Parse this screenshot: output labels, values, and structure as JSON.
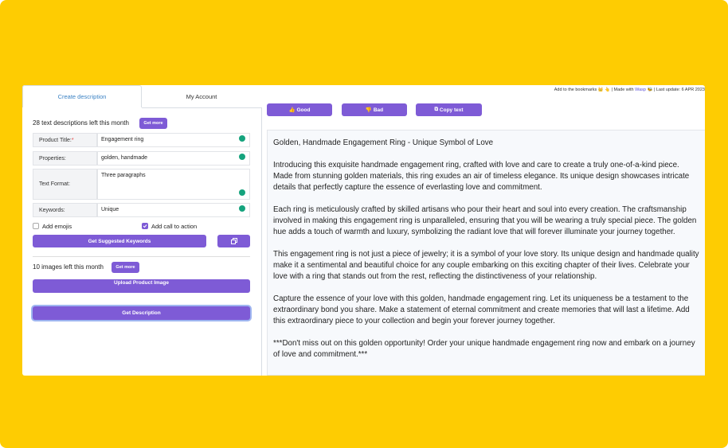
{
  "header_note": {
    "before": "Add to the bookmarks 👑 👆 | Made with ",
    "link": "Wasp",
    "after": " 🐝 | Last update: 6 APR 2023"
  },
  "tabs": [
    "Create description",
    "My Account"
  ],
  "form": {
    "quota": "28 text descriptions left this month",
    "get_more": "Get more",
    "fields": [
      {
        "label": "Product Title:",
        "required": "*",
        "value": "Engagement ring"
      },
      {
        "label": "Properties:",
        "value": "golden, handmade"
      },
      {
        "label": "Text Format:",
        "value": "Three paragraphs"
      },
      {
        "label": "Keywords:",
        "value": "Unique"
      }
    ],
    "checkboxes": [
      {
        "label": "Add emojis",
        "checked": false
      },
      {
        "label": "Add call to action",
        "checked": true
      }
    ],
    "suggest_button": "Get Suggested Keywords",
    "images_quota": "10 images left this month",
    "images_get_more": "Get more",
    "upload_button": "Upload Product Image",
    "submit_button": "Get Description"
  },
  "actions": [
    "Good",
    "Bad",
    "Copy text"
  ],
  "output": {
    "title": "Golden, Handmade Engagement Ring - Unique Symbol of Love",
    "paragraphs": [
      "Introducing this exquisite handmade engagement ring, crafted with love and care to create a truly one-of-a-kind piece. Made from stunning golden materials, this ring exudes an air of timeless elegance. Its unique design showcases intricate details that perfectly capture the essence of everlasting love and commitment.",
      "Each ring is meticulously crafted by skilled artisans who pour their heart and soul into every creation. The craftsmanship involved in making this engagement ring is unparalleled, ensuring that you will be wearing a truly special piece. The golden hue adds a touch of warmth and luxury, symbolizing the radiant love that will forever illuminate your journey together.",
      "This engagement ring is not just a piece of jewelry; it is a symbol of your love story. Its unique design and handmade quality make it a sentimental and beautiful choice for any couple embarking on this exciting chapter of their lives. Celebrate your love with a ring that stands out from the rest, reflecting the distinctiveness of your relationship.",
      "Capture the essence of your love with this golden, handmade engagement ring. Let its uniqueness be a testament to the extraordinary bond you share. Make a statement of eternal commitment and create memories that will last a lifetime. Add this extraordinary piece to your collection and begin your forever journey together.",
      "***Don't miss out on this golden opportunity! Order your unique handmade engagement ring now and embark on a journey of love and commitment.***"
    ]
  }
}
